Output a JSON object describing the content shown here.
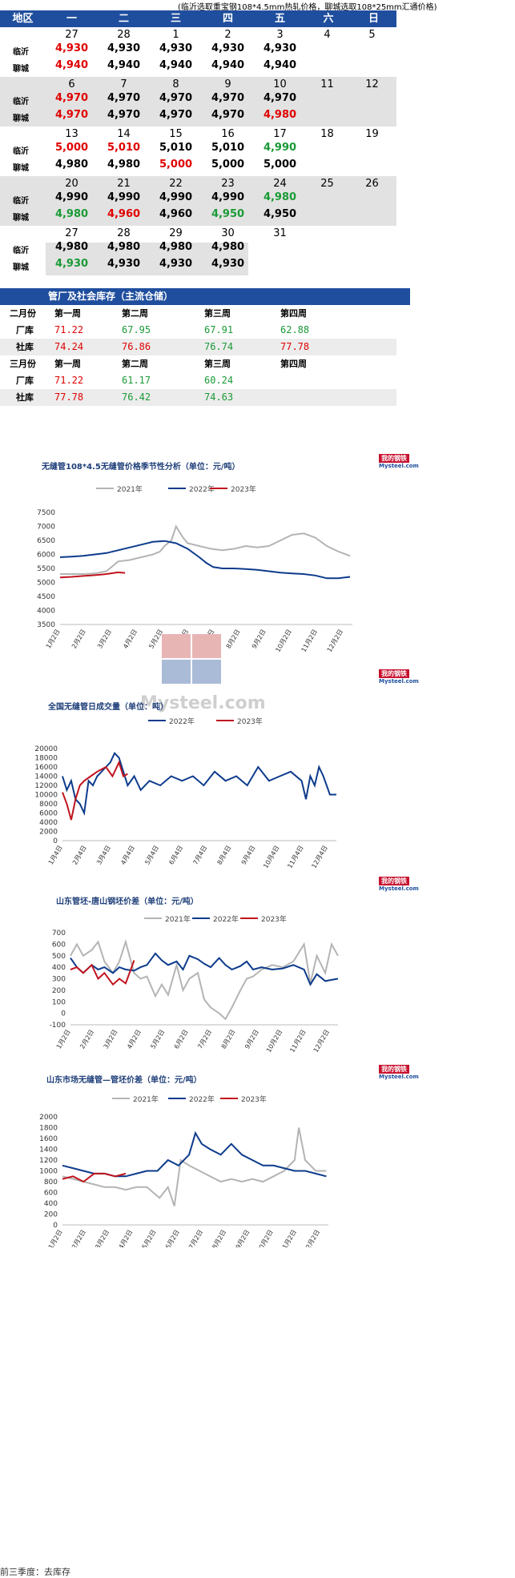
{
  "note": "(临沂选取重宝钢108*4.5mm热轧价格，聊城选取108*25mm汇通价格)",
  "calendar": {
    "headers": [
      "地区",
      "一",
      "二",
      "三",
      "四",
      "五",
      "六",
      "日"
    ],
    "weeks": [
      {
        "days": [
          "27",
          "28",
          "1",
          "2",
          "3",
          "4",
          "5"
        ],
        "linyi": [
          {
            "v": "4,930",
            "c": "red"
          },
          {
            "v": "4,930",
            "c": "black"
          },
          {
            "v": "4,930",
            "c": "black"
          },
          {
            "v": "4,930",
            "c": "black"
          },
          {
            "v": "4,930",
            "c": "black"
          }
        ],
        "liaocheng": [
          {
            "v": "4,940",
            "c": "red"
          },
          {
            "v": "4,940",
            "c": "black"
          },
          {
            "v": "4,940",
            "c": "black"
          },
          {
            "v": "4,940",
            "c": "black"
          },
          {
            "v": "4,940",
            "c": "black"
          }
        ]
      },
      {
        "days": [
          "6",
          "7",
          "8",
          "9",
          "10",
          "11",
          "12"
        ],
        "linyi": [
          {
            "v": "4,970",
            "c": "red"
          },
          {
            "v": "4,970",
            "c": "black"
          },
          {
            "v": "4,970",
            "c": "black"
          },
          {
            "v": "4,970",
            "c": "black"
          },
          {
            "v": "4,970",
            "c": "black"
          }
        ],
        "liaocheng": [
          {
            "v": "4,970",
            "c": "red"
          },
          {
            "v": "4,970",
            "c": "black"
          },
          {
            "v": "4,970",
            "c": "black"
          },
          {
            "v": "4,970",
            "c": "black"
          },
          {
            "v": "4,980",
            "c": "red"
          }
        ]
      },
      {
        "days": [
          "13",
          "14",
          "15",
          "16",
          "17",
          "18",
          "19"
        ],
        "linyi": [
          {
            "v": "5,000",
            "c": "red"
          },
          {
            "v": "5,010",
            "c": "red"
          },
          {
            "v": "5,010",
            "c": "black"
          },
          {
            "v": "5,010",
            "c": "black"
          },
          {
            "v": "4,990",
            "c": "green"
          }
        ],
        "liaocheng": [
          {
            "v": "4,980",
            "c": "black"
          },
          {
            "v": "4,980",
            "c": "black"
          },
          {
            "v": "5,000",
            "c": "red"
          },
          {
            "v": "5,000",
            "c": "black"
          },
          {
            "v": "5,000",
            "c": "black"
          }
        ]
      },
      {
        "days": [
          "20",
          "21",
          "22",
          "23",
          "24",
          "25",
          "26"
        ],
        "linyi": [
          {
            "v": "4,990",
            "c": "black"
          },
          {
            "v": "4,990",
            "c": "black"
          },
          {
            "v": "4,990",
            "c": "black"
          },
          {
            "v": "4,990",
            "c": "black"
          },
          {
            "v": "4,980",
            "c": "green"
          }
        ],
        "liaocheng": [
          {
            "v": "4,980",
            "c": "green"
          },
          {
            "v": "4,960",
            "c": "red"
          },
          {
            "v": "4,960",
            "c": "black"
          },
          {
            "v": "4,950",
            "c": "green"
          },
          {
            "v": "4,950",
            "c": "black"
          }
        ]
      },
      {
        "days": [
          "27",
          "28",
          "29",
          "30",
          "31"
        ],
        "linyi": [
          {
            "v": "4,980",
            "c": "black"
          },
          {
            "v": "4,980",
            "c": "black"
          },
          {
            "v": "4,980",
            "c": "black"
          },
          {
            "v": "4,980",
            "c": "black"
          }
        ],
        "liaocheng": [
          {
            "v": "4,930",
            "c": "green"
          },
          {
            "v": "4,930",
            "c": "black"
          },
          {
            "v": "4,930",
            "c": "black"
          },
          {
            "v": "4,930",
            "c": "black"
          }
        ]
      }
    ],
    "city_linyi": "临沂",
    "city_liaocheng": "聊城"
  },
  "inventory": {
    "title": "管厂及社会库存（主流仓储）",
    "feb": {
      "month": "二月份",
      "weeks": [
        "第一周",
        "第二周",
        "第三周",
        "第四周"
      ],
      "factory": {
        "label": "厂库",
        "vals": [
          {
            "v": "71.22",
            "c": "red"
          },
          {
            "v": "67.95",
            "c": "green"
          },
          {
            "v": "67.91",
            "c": "green"
          },
          {
            "v": "62.88",
            "c": "green"
          }
        ]
      },
      "social": {
        "label": "社库",
        "vals": [
          {
            "v": "74.24",
            "c": "red"
          },
          {
            "v": "76.86",
            "c": "red"
          },
          {
            "v": "76.74",
            "c": "green"
          },
          {
            "v": "77.78",
            "c": "red"
          }
        ]
      }
    },
    "mar": {
      "month": "三月份",
      "weeks": [
        "第一周",
        "第二周",
        "第三周",
        "第四周"
      ],
      "factory": {
        "label": "厂库",
        "vals": [
          {
            "v": "71.22",
            "c": "red"
          },
          {
            "v": "61.17",
            "c": "green"
          },
          {
            "v": "60.24",
            "c": "green"
          }
        ]
      },
      "social": {
        "label": "社库",
        "vals": [
          {
            "v": "77.78",
            "c": "red"
          },
          {
            "v": "76.42",
            "c": "green"
          },
          {
            "v": "74.63",
            "c": "green"
          }
        ]
      }
    }
  },
  "logo": {
    "top": "我的钢铁",
    "bottom": "Mysteel.com"
  },
  "watermark": {
    "cn": "我的钢铁",
    "en": "Mysteel.com"
  },
  "colors": {
    "y2021": "#b4b4b4",
    "y2022": "#0d3b8c",
    "y2023": "#c0141e",
    "header": "#1f4e9e"
  },
  "chart_data": [
    {
      "type": "line",
      "title": "无缝管108*4.5无缝管价格季节性分析（单位：元/吨）",
      "legend": [
        "2021年",
        "2022年",
        "2023年"
      ],
      "ylim": [
        3500,
        7500
      ],
      "yticks": [
        "7500",
        "7000",
        "6500",
        "6000",
        "5500",
        "5000",
        "4500",
        "4000",
        "3500"
      ],
      "xticks": [
        "1月2日",
        "2月2日",
        "3月2日",
        "4月2日",
        "5月2日",
        "6月2日",
        "7月2日",
        "8月2日",
        "9月2日",
        "10月2日",
        "11月2日",
        "12月2日"
      ],
      "series": [
        {
          "name": "2021年",
          "x": [
            0,
            1,
            1.5,
            2,
            2.5,
            3,
            3.5,
            4,
            4.3,
            4.5,
            4.8,
            5,
            5.3,
            5.5,
            6,
            6.5,
            7,
            7.5,
            8,
            8.5,
            9,
            9.5,
            10,
            10.5,
            11,
            11.5,
            12,
            12.5
          ],
          "y": [
            5300,
            5300,
            5320,
            5400,
            5750,
            5800,
            5900,
            6000,
            6100,
            6300,
            6500,
            7000,
            6600,
            6400,
            6300,
            6200,
            6150,
            6200,
            6300,
            6250,
            6300,
            6500,
            6700,
            6750,
            6600,
            6300,
            6100,
            5950
          ]
        },
        {
          "name": "2022年",
          "x": [
            0,
            0.5,
            1,
            1.5,
            2,
            2.5,
            3,
            3.5,
            4,
            4.5,
            5,
            5.5,
            6,
            6.3,
            6.6,
            7,
            7.5,
            8,
            8.5,
            9,
            9.5,
            10,
            10.5,
            11,
            11.5,
            12,
            12.5
          ],
          "y": [
            5900,
            5920,
            5950,
            6000,
            6050,
            6150,
            6250,
            6350,
            6450,
            6480,
            6400,
            6200,
            5900,
            5700,
            5550,
            5500,
            5500,
            5480,
            5450,
            5400,
            5350,
            5320,
            5300,
            5250,
            5150,
            5150,
            5200
          ]
        },
        {
          "name": "2023年",
          "x": [
            0,
            0.5,
            1,
            1.5,
            2,
            2.5,
            2.8
          ],
          "y": [
            5180,
            5200,
            5230,
            5260,
            5300,
            5360,
            5340
          ]
        }
      ]
    },
    {
      "type": "line",
      "title": "全国无缝管日成交量（单位：吨）",
      "legend": [
        "2022年",
        "2023年"
      ],
      "ylim": [
        0,
        20000
      ],
      "yticks": [
        "20000",
        "18000",
        "16000",
        "14000",
        "12000",
        "10000",
        "8000",
        "6000",
        "4000",
        "2000",
        "0"
      ],
      "xticks": [
        "1月4日",
        "2月4日",
        "3月4日",
        "4月4日",
        "5月4日",
        "6月4日",
        "7月4日",
        "8月4日",
        "9月4日",
        "10月4日",
        "11月4日",
        "12月4日"
      ],
      "series": [
        {
          "name": "2022年",
          "x": [
            0,
            0.2,
            0.4,
            0.6,
            0.8,
            1,
            1.2,
            1.4,
            1.6,
            1.8,
            2,
            2.2,
            2.4,
            2.6,
            2.8,
            3,
            3.3,
            3.6,
            4,
            4.5,
            5,
            5.5,
            6,
            6.5,
            7,
            7.5,
            8,
            8.5,
            9,
            9.5,
            10,
            10.5,
            11,
            11.2,
            11.4,
            11.6,
            11.8,
            12,
            12.3,
            12.6
          ],
          "y": [
            14000,
            11000,
            13000,
            9000,
            8000,
            6000,
            13000,
            12000,
            14000,
            15000,
            16000,
            17000,
            19000,
            18000,
            15000,
            12000,
            14000,
            11000,
            13000,
            12000,
            14000,
            13000,
            14000,
            12000,
            15000,
            13000,
            14000,
            12000,
            16000,
            13000,
            14000,
            15000,
            13000,
            9000,
            14000,
            12000,
            16000,
            14000,
            10000,
            10000
          ]
        },
        {
          "name": "2023年",
          "x": [
            0,
            0.2,
            0.4,
            0.6,
            0.8,
            1,
            1.3,
            1.6,
            2,
            2.3,
            2.6,
            2.8,
            3
          ],
          "y": [
            10500,
            8000,
            4500,
            9000,
            12000,
            13000,
            14000,
            15000,
            16000,
            14000,
            17000,
            14000,
            14500
          ]
        }
      ]
    },
    {
      "type": "line",
      "title": "山东管坯-唐山钢坯价差（单位：元/吨）",
      "legend": [
        "2021年",
        "2022年",
        "2023年"
      ],
      "ylim": [
        -100,
        700
      ],
      "yticks": [
        "700",
        "600",
        "500",
        "400",
        "300",
        "200",
        "100",
        "0",
        "-100"
      ],
      "xticks": [
        "1月2日",
        "2月2日",
        "3月2日",
        "4月2日",
        "5月2日",
        "6月2日",
        "7月2日",
        "8月2日",
        "9月2日",
        "10月2日",
        "11月2日",
        "12月2日"
      ],
      "series": [
        {
          "name": "2021年",
          "x": [
            0,
            0.3,
            0.6,
            1,
            1.3,
            1.6,
            2,
            2.3,
            2.6,
            3,
            3.3,
            3.6,
            4,
            4.3,
            4.6,
            5,
            5.3,
            5.6,
            6,
            6.3,
            6.6,
            7,
            7.3,
            7.6,
            8,
            8.3,
            8.6,
            9,
            9.5,
            10,
            10.5,
            11,
            11.3,
            11.6,
            12,
            12.3,
            12.6
          ],
          "y": [
            500,
            600,
            500,
            550,
            620,
            450,
            350,
            450,
            620,
            350,
            300,
            320,
            150,
            250,
            160,
            420,
            200,
            300,
            350,
            120,
            50,
            0,
            -50,
            50,
            200,
            300,
            320,
            380,
            420,
            400,
            450,
            600,
            260,
            500,
            350,
            600,
            500
          ]
        },
        {
          "name": "2022年",
          "x": [
            0,
            0.3,
            0.6,
            1,
            1.3,
            1.6,
            2,
            2.3,
            2.6,
            3,
            3.3,
            3.6,
            4,
            4.3,
            4.6,
            5,
            5.3,
            5.6,
            6,
            6.3,
            6.6,
            7,
            7.3,
            7.6,
            8,
            8.3,
            8.6,
            9,
            9.5,
            10,
            10.5,
            11,
            11.3,
            11.6,
            12,
            12.3,
            12.6
          ],
          "y": [
            480,
            400,
            350,
            420,
            380,
            400,
            350,
            400,
            380,
            370,
            400,
            420,
            520,
            460,
            420,
            450,
            380,
            500,
            470,
            430,
            400,
            480,
            420,
            380,
            410,
            450,
            380,
            400,
            380,
            390,
            420,
            380,
            250,
            340,
            280,
            290,
            300
          ]
        },
        {
          "name": "2023年",
          "x": [
            0,
            0.3,
            0.6,
            1,
            1.3,
            1.6,
            2,
            2.3,
            2.6,
            2.8,
            3
          ],
          "y": [
            380,
            400,
            350,
            420,
            300,
            350,
            250,
            300,
            260,
            360,
            460
          ]
        }
      ]
    },
    {
      "type": "line",
      "title": "山东市场无缝管—管坯价差（单位：元/吨）",
      "legend": [
        "2021年",
        "2022年",
        "2023年"
      ],
      "ylim": [
        0,
        2000
      ],
      "yticks": [
        "2000",
        "1800",
        "1600",
        "1400",
        "1200",
        "1000",
        "800",
        "600",
        "400",
        "200",
        "0"
      ],
      "xticks": [
        "1月2日",
        "2月2日",
        "3月2日",
        "4月2日",
        "5月2日",
        "6月2日",
        "7月2日",
        "8月2日",
        "9月2日",
        "10月2日",
        "11月2日",
        "12月2日"
      ],
      "series": [
        {
          "name": "2021年",
          "x": [
            0,
            0.5,
            1,
            1.5,
            2,
            2.5,
            3,
            3.5,
            4,
            4.3,
            4.6,
            5,
            5.3,
            5.6,
            6,
            6.5,
            7,
            7.5,
            8,
            8.5,
            9,
            9.5,
            10,
            10.5,
            11,
            11.2,
            11.5,
            12,
            12.5
          ],
          "y": [
            900,
            850,
            800,
            750,
            700,
            700,
            650,
            700,
            700,
            600,
            500,
            700,
            350,
            1200,
            1100,
            1000,
            900,
            800,
            850,
            800,
            850,
            800,
            900,
            1000,
            1200,
            1800,
            1200,
            1000,
            1000
          ]
        },
        {
          "name": "2022年",
          "x": [
            0,
            0.5,
            1,
            1.5,
            2,
            2.5,
            3,
            3.5,
            4,
            4.5,
            5,
            5.5,
            6,
            6.3,
            6.6,
            7,
            7.5,
            8,
            8.5,
            9,
            9.5,
            10,
            10.5,
            11,
            11.5,
            12,
            12.5
          ],
          "y": [
            1100,
            1050,
            1000,
            950,
            950,
            900,
            900,
            950,
            1000,
            1000,
            1200,
            1100,
            1300,
            1700,
            1500,
            1400,
            1300,
            1500,
            1300,
            1200,
            1100,
            1100,
            1050,
            1000,
            1000,
            950,
            900
          ]
        },
        {
          "name": "2023年",
          "x": [
            0,
            0.5,
            1,
            1.5,
            2,
            2.5,
            3
          ],
          "y": [
            850,
            900,
            800,
            950,
            950,
            900,
            950
          ]
        }
      ]
    }
  ],
  "footer": "前三季度：去库存"
}
